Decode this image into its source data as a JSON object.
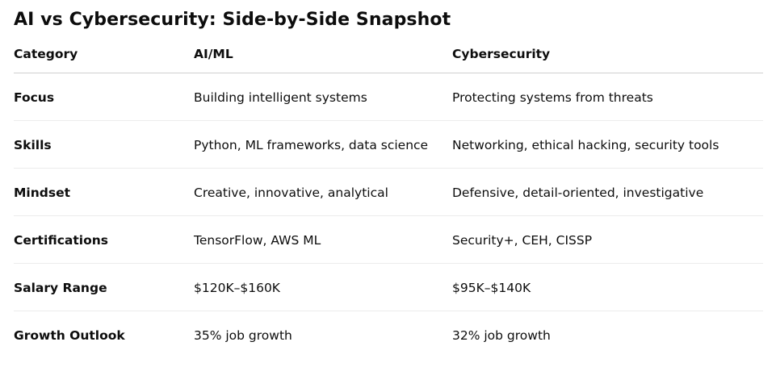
{
  "title": "AI vs Cybersecurity: Side-by-Side Snapshot",
  "table": {
    "headers": [
      "Category",
      "AI/ML",
      "Cybersecurity"
    ],
    "rows": [
      {
        "category": "Focus",
        "ai_ml": "Building intelligent systems",
        "cybersecurity": "Protecting systems from threats"
      },
      {
        "category": "Skills",
        "ai_ml": "Python, ML frameworks, data science",
        "cybersecurity": "Networking, ethical hacking, security tools"
      },
      {
        "category": "Mindset",
        "ai_ml": "Creative, innovative, analytical",
        "cybersecurity": "Defensive, detail-oriented, investigative"
      },
      {
        "category": "Certifications",
        "ai_ml": "TensorFlow, AWS ML",
        "cybersecurity": "Security+, CEH, CISSP"
      },
      {
        "category": "Salary Range",
        "ai_ml": "$120K–$160K",
        "cybersecurity": "$95K–$140K"
      },
      {
        "category": "Growth Outlook",
        "ai_ml": "35% job growth",
        "cybersecurity": "32% job growth"
      }
    ]
  }
}
